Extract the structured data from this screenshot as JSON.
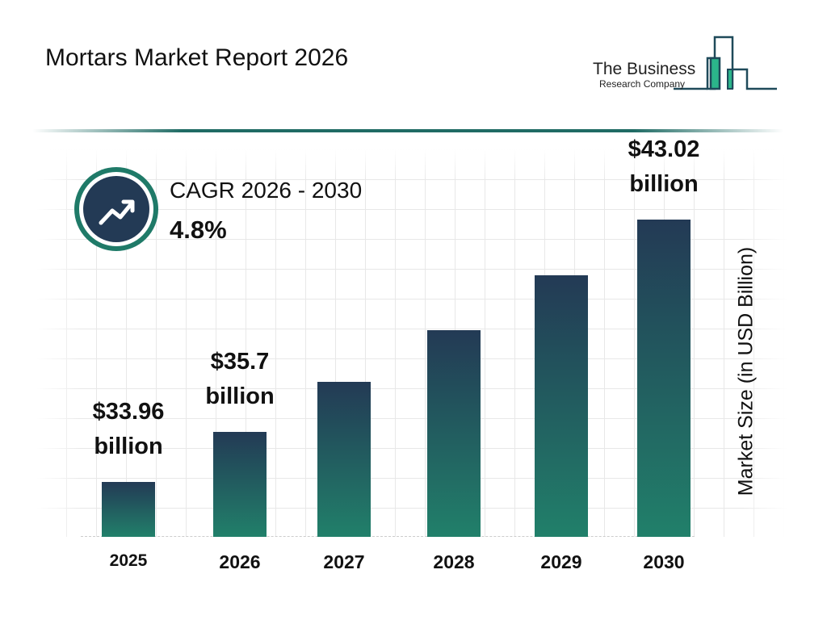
{
  "title": "Mortars Market Report 2026",
  "logo": {
    "line1": "The Business",
    "line2": "Research Company"
  },
  "cagr": {
    "label": "CAGR 2026 - 2030",
    "value": "4.8%",
    "icon": "trend-up-arrow-icon"
  },
  "colors": {
    "bar_top": "#233a55",
    "bar_bottom": "#21806a",
    "accent": "#1f7a68"
  },
  "chart_data": {
    "type": "bar",
    "title": "Mortars Market Report 2026",
    "ylabel": "Market Size (in USD Billion)",
    "xlabel": "",
    "categories": [
      "2025",
      "2026",
      "2027",
      "2028",
      "2029",
      "2030"
    ],
    "values": [
      33.96,
      35.7,
      37.41,
      39.21,
      41.09,
      43.02
    ],
    "data_labels": [
      {
        "index": 0,
        "line1": "$33.96",
        "line2": "billion"
      },
      {
        "index": 1,
        "line1": "$35.7",
        "line2": "billion"
      },
      {
        "index": 5,
        "line1": "$43.02",
        "line2": "billion"
      }
    ],
    "grid": true,
    "legend": "none"
  }
}
